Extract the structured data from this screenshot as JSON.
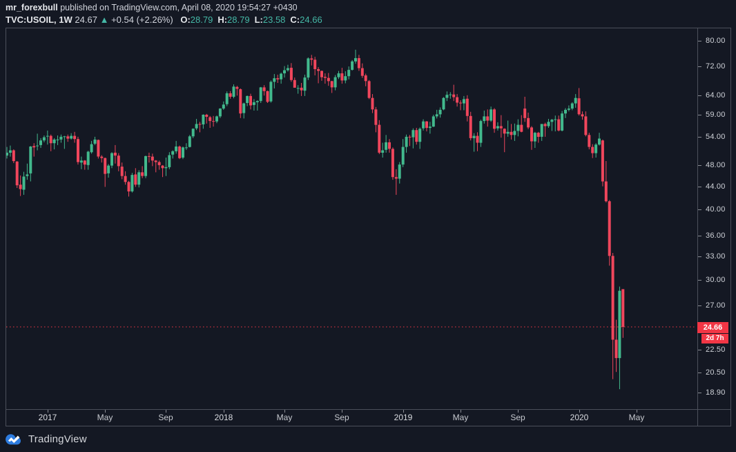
{
  "header": {
    "author": "mr_forexbull",
    "published": " published on TradingView.com, April 08, 2020 19:54:27 +0430",
    "symbol": "TVC:USOIL, 1W",
    "last": "24.67",
    "arrow": "▲",
    "change": "+0.54 (+2.26%)",
    "ohlc": [
      {
        "k": "O:",
        "v": "28.79"
      },
      {
        "k": "H:",
        "v": "28.79"
      },
      {
        "k": "L:",
        "v": "23.58"
      },
      {
        "k": "C:",
        "v": "24.66"
      }
    ]
  },
  "price_scale": {
    "labels": [
      "80.00",
      "72.00",
      "64.00",
      "59.00",
      "54.00",
      "48.00",
      "44.00",
      "40.00",
      "36.00",
      "33.00",
      "30.00",
      "27.00",
      "22.50",
      "20.50",
      "18.90"
    ],
    "last_price_label": "24.66",
    "countdown": "2d 7h"
  },
  "footer": {
    "brand": "TradingView"
  },
  "colors": {
    "background": "#141823",
    "up": "#42b98d",
    "down": "#f0465c",
    "last_price_line": "#f23645",
    "border": "#4c505b",
    "text": "#d1d4dc",
    "ohlc_value": "#45b8a6",
    "logo_blue": "#2d7ce0"
  },
  "chart_data": {
    "type": "candlestick",
    "title": "TVC:USOIL weekly (WTI crude oil), Oct 2016 - Apr 2020",
    "symbol": "TVC:USOIL",
    "interval": "1W",
    "scale": "logarithmic",
    "ylim": [
      18.0,
      81.5
    ],
    "grid": false,
    "legend_position": "none",
    "last_price": 24.66,
    "x_axis_ticks": [
      {
        "label": "2017",
        "week_index": 12,
        "major": true
      },
      {
        "label": "May",
        "week_index": 29,
        "major": false
      },
      {
        "label": "Sep",
        "week_index": 47,
        "major": false
      },
      {
        "label": "2018",
        "week_index": 64,
        "major": true
      },
      {
        "label": "May",
        "week_index": 82,
        "major": false
      },
      {
        "label": "Sep",
        "week_index": 99,
        "major": false
      },
      {
        "label": "2019",
        "week_index": 117,
        "major": true
      },
      {
        "label": "May",
        "week_index": 134,
        "major": false
      },
      {
        "label": "Sep",
        "week_index": 151,
        "major": false
      },
      {
        "label": "2020",
        "week_index": 169,
        "major": true
      },
      {
        "label": "May",
        "week_index": 186,
        "major": false
      }
    ],
    "y_axis_values": [
      80,
      72,
      64,
      59,
      54,
      48,
      44,
      40,
      36,
      33,
      30,
      27,
      22.5,
      20.5,
      18.9
    ],
    "ohlc_note": "weekly candles [open, high, low, close], estimated from chart pixels",
    "candles": [
      [
        49.8,
        51.6,
        49.2,
        50.4
      ],
      [
        50.4,
        51.9,
        49.6,
        50.9
      ],
      [
        50.9,
        51.1,
        48.3,
        48.7
      ],
      [
        48.6,
        48.7,
        43.6,
        44.1
      ],
      [
        44.2,
        45.9,
        42.2,
        43.4
      ],
      [
        43.3,
        46.6,
        42.4,
        45.7
      ],
      [
        45.8,
        48.2,
        45.1,
        46.1
      ],
      [
        46.3,
        51.8,
        44.8,
        51.7
      ],
      [
        51.8,
        52.4,
        49.6,
        51.5
      ],
      [
        51.8,
        54.5,
        50.9,
        51.9
      ],
      [
        52.0,
        53.5,
        51.4,
        53.0
      ],
      [
        53.0,
        54.1,
        52.6,
        53.7
      ],
      [
        53.9,
        55.2,
        52.1,
        54.0
      ],
      [
        54.0,
        54.3,
        50.7,
        52.4
      ],
      [
        52.4,
        53.5,
        51.1,
        53.2
      ],
      [
        53.2,
        54.1,
        52.0,
        53.2
      ],
      [
        53.2,
        54.3,
        52.5,
        53.8
      ],
      [
        53.8,
        54.0,
        51.2,
        53.9
      ],
      [
        53.9,
        54.3,
        52.7,
        53.4
      ],
      [
        53.4,
        54.6,
        53.2,
        54.0
      ],
      [
        54.0,
        54.9,
        52.5,
        53.3
      ],
      [
        53.3,
        53.8,
        48.0,
        48.5
      ],
      [
        48.4,
        49.6,
        47.1,
        48.8
      ],
      [
        48.8,
        48.9,
        47.0,
        48.0
      ],
      [
        47.9,
        50.8,
        47.0,
        50.6
      ],
      [
        50.5,
        52.9,
        50.2,
        52.2
      ],
      [
        52.3,
        53.8,
        52.0,
        53.2
      ],
      [
        53.1,
        53.2,
        49.2,
        49.6
      ],
      [
        49.6,
        49.9,
        48.4,
        49.3
      ],
      [
        49.3,
        49.4,
        43.8,
        46.2
      ],
      [
        46.3,
        48.1,
        45.5,
        47.8
      ],
      [
        47.8,
        50.5,
        47.3,
        50.3
      ],
      [
        50.4,
        52.0,
        48.2,
        49.8
      ],
      [
        49.8,
        50.3,
        46.7,
        47.7
      ],
      [
        47.6,
        48.4,
        45.2,
        45.8
      ],
      [
        45.8,
        46.7,
        44.2,
        44.7
      ],
      [
        44.7,
        44.9,
        42.1,
        43.0
      ],
      [
        43.0,
        46.4,
        42.8,
        46.0
      ],
      [
        46.1,
        47.3,
        43.8,
        44.2
      ],
      [
        44.2,
        46.9,
        43.7,
        46.5
      ],
      [
        46.5,
        47.7,
        45.4,
        45.8
      ],
      [
        45.8,
        49.8,
        45.4,
        49.7
      ],
      [
        49.7,
        50.4,
        48.4,
        49.6
      ],
      [
        49.6,
        50.2,
        47.7,
        48.8
      ],
      [
        48.8,
        48.9,
        46.5,
        48.5
      ],
      [
        48.5,
        48.8,
        47.0,
        47.9
      ],
      [
        47.8,
        47.9,
        45.6,
        47.3
      ],
      [
        47.3,
        49.4,
        45.8,
        47.5
      ],
      [
        47.5,
        50.5,
        47.1,
        49.9
      ],
      [
        50.0,
        50.9,
        49.2,
        50.7
      ],
      [
        50.7,
        52.9,
        50.2,
        51.7
      ],
      [
        51.7,
        51.9,
        49.1,
        49.3
      ],
      [
        49.4,
        51.7,
        49.1,
        51.5
      ],
      [
        51.5,
        52.4,
        51.0,
        51.5
      ],
      [
        51.6,
        54.2,
        51.5,
        53.9
      ],
      [
        53.9,
        55.7,
        53.5,
        55.6
      ],
      [
        55.7,
        57.9,
        55.3,
        56.7
      ],
      [
        56.7,
        57.2,
        54.8,
        56.6
      ],
      [
        56.6,
        59.0,
        55.6,
        58.9
      ],
      [
        58.9,
        59.1,
        56.8,
        58.4
      ],
      [
        58.3,
        58.6,
        55.8,
        57.4
      ],
      [
        57.4,
        58.6,
        56.1,
        57.3
      ],
      [
        57.3,
        58.7,
        56.9,
        58.5
      ],
      [
        58.5,
        60.5,
        58.1,
        60.4
      ],
      [
        60.4,
        62.2,
        60.1,
        61.4
      ],
      [
        61.5,
        64.8,
        61.0,
        64.3
      ],
      [
        64.3,
        64.9,
        62.9,
        63.4
      ],
      [
        63.4,
        66.7,
        63.0,
        66.1
      ],
      [
        66.0,
        66.3,
        63.7,
        65.5
      ],
      [
        65.4,
        65.6,
        58.1,
        59.2
      ],
      [
        59.3,
        61.9,
        58.0,
        61.7
      ],
      [
        61.8,
        63.7,
        61.0,
        63.6
      ],
      [
        63.6,
        64.2,
        60.2,
        61.2
      ],
      [
        61.3,
        62.8,
        59.9,
        62.0
      ],
      [
        62.0,
        62.5,
        59.9,
        62.3
      ],
      [
        62.3,
        66.0,
        61.8,
        65.9
      ],
      [
        65.9,
        66.5,
        63.7,
        64.9
      ],
      [
        64.9,
        65.0,
        61.8,
        62.1
      ],
      [
        62.2,
        67.8,
        61.9,
        67.4
      ],
      [
        67.4,
        69.6,
        65.6,
        68.4
      ],
      [
        68.4,
        69.4,
        67.1,
        68.1
      ],
      [
        68.1,
        70.0,
        66.9,
        69.7
      ],
      [
        69.8,
        71.9,
        68.6,
        70.7
      ],
      [
        70.7,
        72.3,
        70.3,
        71.3
      ],
      [
        71.4,
        72.8,
        67.4,
        67.9
      ],
      [
        67.9,
        68.6,
        65.8,
        65.8
      ],
      [
        65.7,
        66.5,
        64.2,
        65.7
      ],
      [
        65.8,
        67.1,
        63.6,
        65.1
      ],
      [
        65.0,
        69.4,
        63.6,
        68.6
      ],
      [
        68.6,
        74.5,
        67.9,
        74.2
      ],
      [
        74.2,
        75.3,
        72.1,
        73.8
      ],
      [
        73.8,
        74.7,
        69.2,
        71.0
      ],
      [
        71.0,
        71.6,
        67.0,
        70.5
      ],
      [
        70.5,
        70.6,
        67.7,
        68.7
      ],
      [
        68.8,
        69.8,
        66.9,
        68.5
      ],
      [
        68.5,
        69.9,
        66.3,
        67.6
      ],
      [
        67.6,
        67.7,
        64.4,
        65.9
      ],
      [
        65.9,
        69.3,
        65.1,
        68.7
      ],
      [
        68.7,
        70.5,
        68.2,
        69.8
      ],
      [
        69.8,
        71.4,
        66.9,
        67.8
      ],
      [
        67.8,
        70.4,
        67.0,
        69.0
      ],
      [
        69.0,
        71.8,
        68.1,
        70.8
      ],
      [
        70.8,
        73.7,
        70.6,
        73.3
      ],
      [
        73.3,
        76.9,
        72.6,
        74.3
      ],
      [
        74.3,
        75.3,
        70.5,
        71.3
      ],
      [
        71.3,
        72.7,
        68.5,
        69.1
      ],
      [
        69.2,
        69.7,
        66.2,
        67.6
      ],
      [
        67.6,
        67.9,
        62.8,
        63.1
      ],
      [
        63.1,
        64.1,
        59.3,
        60.2
      ],
      [
        60.2,
        60.8,
        54.8,
        56.5
      ],
      [
        56.5,
        57.6,
        50.1,
        50.4
      ],
      [
        50.4,
        52.5,
        49.4,
        50.9
      ],
      [
        51.0,
        54.2,
        50.4,
        52.6
      ],
      [
        52.6,
        53.3,
        50.4,
        51.2
      ],
      [
        51.2,
        51.5,
        45.1,
        45.6
      ],
      [
        45.6,
        47.1,
        42.4,
        45.3
      ],
      [
        45.3,
        48.5,
        44.4,
        48.0
      ],
      [
        48.0,
        53.3,
        47.5,
        51.6
      ],
      [
        51.6,
        54.3,
        50.4,
        53.8
      ],
      [
        53.8,
        54.2,
        51.8,
        53.7
      ],
      [
        53.7,
        55.7,
        51.3,
        55.3
      ],
      [
        55.3,
        55.8,
        52.1,
        52.7
      ],
      [
        52.7,
        55.9,
        51.2,
        55.6
      ],
      [
        55.7,
        57.8,
        55.2,
        57.3
      ],
      [
        57.3,
        57.4,
        55.0,
        55.8
      ],
      [
        55.8,
        57.2,
        54.5,
        56.1
      ],
      [
        56.1,
        58.9,
        56.0,
        58.5
      ],
      [
        58.5,
        60.1,
        58.0,
        59.0
      ],
      [
        59.0,
        60.7,
        58.2,
        60.1
      ],
      [
        60.2,
        63.3,
        60.0,
        63.1
      ],
      [
        63.1,
        64.8,
        62.3,
        63.9
      ],
      [
        63.9,
        64.6,
        62.9,
        64.0
      ],
      [
        64.0,
        66.6,
        62.3,
        63.3
      ],
      [
        63.3,
        64.1,
        60.9,
        61.9
      ],
      [
        61.9,
        62.5,
        60.0,
        61.7
      ],
      [
        61.7,
        63.6,
        60.0,
        62.8
      ],
      [
        62.9,
        63.8,
        57.3,
        58.6
      ],
      [
        58.6,
        59.6,
        53.0,
        53.5
      ],
      [
        53.5,
        54.6,
        50.6,
        54.0
      ],
      [
        54.0,
        54.8,
        50.7,
        52.5
      ],
      [
        52.5,
        57.7,
        51.6,
        57.4
      ],
      [
        57.4,
        59.9,
        56.8,
        58.5
      ],
      [
        58.5,
        60.2,
        56.1,
        57.5
      ],
      [
        57.5,
        60.9,
        57.2,
        60.2
      ],
      [
        60.2,
        60.5,
        54.7,
        55.6
      ],
      [
        55.7,
        57.1,
        55.2,
        56.2
      ],
      [
        56.2,
        58.8,
        53.6,
        55.7
      ],
      [
        55.6,
        55.7,
        50.5,
        54.5
      ],
      [
        54.5,
        57.5,
        53.8,
        54.9
      ],
      [
        54.9,
        56.7,
        53.2,
        54.2
      ],
      [
        54.2,
        56.8,
        52.9,
        55.1
      ],
      [
        55.1,
        57.8,
        53.9,
        56.5
      ],
      [
        56.5,
        58.8,
        54.8,
        54.9
      ],
      [
        60.4,
        63.4,
        57.2,
        58.1
      ],
      [
        58.1,
        59.4,
        55.5,
        55.9
      ],
      [
        55.9,
        56.2,
        51.0,
        52.8
      ],
      [
        52.8,
        54.9,
        51.4,
        54.7
      ],
      [
        54.7,
        54.9,
        52.5,
        53.8
      ],
      [
        53.8,
        56.7,
        52.9,
        56.7
      ],
      [
        56.7,
        57.0,
        53.8,
        56.2
      ],
      [
        56.2,
        57.9,
        55.8,
        57.2
      ],
      [
        57.2,
        57.9,
        55.1,
        57.7
      ],
      [
        57.7,
        58.7,
        55.0,
        57.8
      ],
      [
        57.8,
        58.7,
        55.0,
        55.2
      ],
      [
        55.2,
        59.8,
        55.0,
        59.2
      ],
      [
        59.2,
        60.5,
        58.1,
        60.1
      ],
      [
        60.1,
        61.2,
        59.7,
        60.4
      ],
      [
        60.4,
        62.0,
        60.0,
        61.7
      ],
      [
        61.7,
        64.1,
        60.6,
        63.1
      ],
      [
        63.0,
        65.7,
        58.7,
        59.0
      ],
      [
        59.0,
        59.7,
        57.7,
        58.5
      ],
      [
        58.5,
        59.7,
        53.9,
        54.2
      ],
      [
        54.2,
        54.7,
        51.1,
        51.6
      ],
      [
        51.6,
        52.2,
        49.3,
        50.3
      ],
      [
        50.3,
        52.4,
        49.4,
        52.1
      ],
      [
        52.1,
        54.7,
        51.9,
        53.4
      ],
      [
        53.0,
        53.2,
        43.9,
        44.8
      ],
      [
        44.8,
        48.7,
        41.1,
        41.3
      ],
      [
        41.3,
        41.5,
        31.7,
        33.0
      ],
      [
        33.0,
        33.4,
        19.9,
        23.4
      ],
      [
        23.4,
        25.4,
        20.5,
        21.7
      ],
      [
        21.7,
        29.1,
        19.1,
        28.6
      ],
      [
        28.79,
        28.79,
        23.58,
        24.66
      ]
    ]
  }
}
